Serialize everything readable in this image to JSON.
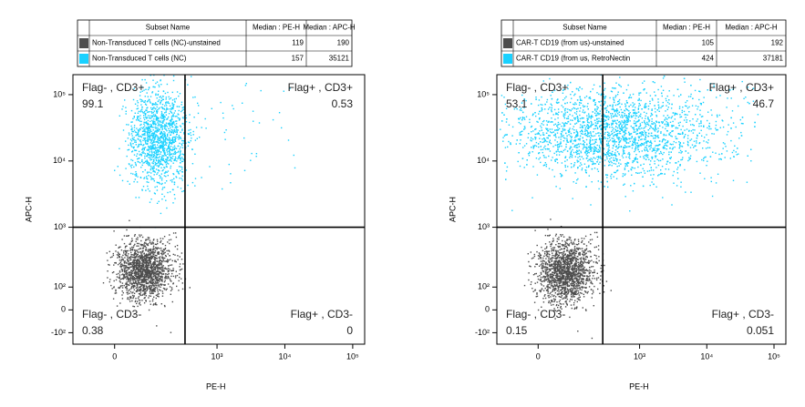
{
  "chart_data": [
    {
      "type": "scatter",
      "xlabel": "PE-H",
      "ylabel": "APC-H",
      "xscale": "logicle",
      "yscale": "logicle",
      "xlim": [
        -120,
        150000
      ],
      "ylim": [
        -170,
        200000
      ],
      "xticks": [
        0,
        {
          "value": 1000,
          "label": "10³"
        },
        {
          "value": 10000,
          "label": "10⁴"
        },
        {
          "value": 100000,
          "label": "10⁵"
        }
      ],
      "yticks": [
        {
          "value": -100,
          "label": "-10²"
        },
        0,
        {
          "value": 100,
          "label": "10²"
        },
        {
          "value": 1000,
          "label": "10³"
        },
        {
          "value": 10000,
          "label": "10⁴"
        },
        {
          "value": 100000,
          "label": "10⁵"
        }
      ],
      "gate": {
        "x": 335,
        "y": 1000
      },
      "table": {
        "headers": [
          "Subset Name",
          "Median : PE-H",
          "Median : APC-H"
        ],
        "rows": [
          {
            "name": "Non-Transduced T cells  (NC)-unstained",
            "color": "#4d4d4d",
            "pe": 119,
            "apc": 190
          },
          {
            "name": "Non-Transduced T cells  (NC)",
            "color": "#1ad1ff",
            "pe": 157,
            "apc": 35121
          }
        ]
      },
      "quadrants": [
        {
          "label": "Flag- , CD3+",
          "value": 99.1
        },
        {
          "label": "Flag+ , CD3+",
          "value": 0.53
        },
        {
          "label": "Flag- , CD3-",
          "value": 0.38
        },
        {
          "label": "Flag+ , CD3-",
          "value": 0
        }
      ]
    },
    {
      "type": "scatter",
      "xlabel": "PE-H",
      "ylabel": "APC-H",
      "xscale": "logicle",
      "yscale": "logicle",
      "xlim": [
        -120,
        150000
      ],
      "ylim": [
        -170,
        200000
      ],
      "xticks": [
        0,
        {
          "value": 1000,
          "label": "10³"
        },
        {
          "value": 10000,
          "label": "10⁴"
        },
        {
          "value": 100000,
          "label": "10⁵"
        }
      ],
      "yticks": [
        {
          "value": -100,
          "label": "-10²"
        },
        0,
        {
          "value": 100,
          "label": "10²"
        },
        {
          "value": 1000,
          "label": "10³"
        },
        {
          "value": 10000,
          "label": "10⁴"
        },
        {
          "value": 100000,
          "label": "10⁵"
        }
      ],
      "gate": {
        "x": 280,
        "y": 1000
      },
      "table": {
        "headers": [
          "Subset Name",
          "Median : PE-H",
          "Median : APC-H"
        ],
        "rows": [
          {
            "name": "CAR-T CD19 (from us)-unstained",
            "color": "#4d4d4d",
            "pe": 105,
            "apc": 192
          },
          {
            "name": "CAR-T CD19 (from us, RetroNectin",
            "color": "#1ad1ff",
            "pe": 424,
            "apc": 37181
          }
        ]
      },
      "quadrants": [
        {
          "label": "Flag- , CD3+",
          "value": 53.1
        },
        {
          "label": "Flag+ , CD3+",
          "value": 46.7
        },
        {
          "label": "Flag- , CD3-",
          "value": 0.15
        },
        {
          "label": "Flag+ , CD3-",
          "value": 0.051
        }
      ]
    }
  ]
}
